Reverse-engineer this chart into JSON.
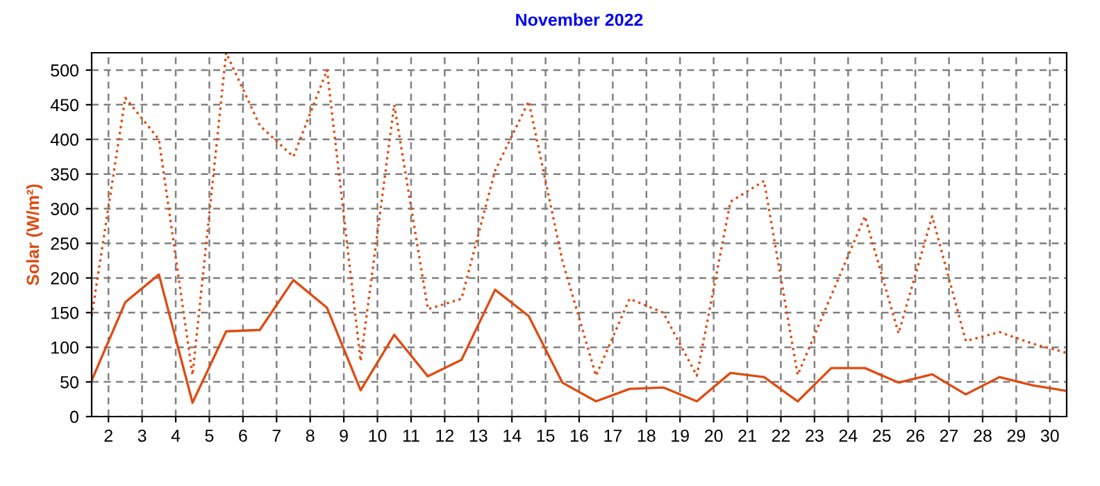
{
  "chart_data": {
    "type": "line",
    "title": "November 2022",
    "ylabel": "Solar (W/m²)",
    "x": [
      1.5,
      2.5,
      3.5,
      4.5,
      5.5,
      6.5,
      7.5,
      8.5,
      9.5,
      10.5,
      11.5,
      12.5,
      13.5,
      14.5,
      15.5,
      16.5,
      17.5,
      18.5,
      19.5,
      20.5,
      21.5,
      22.5,
      23.5,
      24.5,
      25.5,
      26.5,
      27.5,
      28.5,
      29.5,
      30.5
    ],
    "series": [
      {
        "color": "#e04a10",
        "line_style": "dotted",
        "values": [
          145,
          460,
          400,
          60,
          525,
          420,
          375,
          500,
          80,
          450,
          155,
          170,
          355,
          455,
          225,
          59,
          170,
          150,
          59,
          310,
          340,
          60,
          175,
          289,
          120,
          289,
          109,
          122,
          105,
          92
        ]
      },
      {
        "color": "#e04a10",
        "line_style": "solid",
        "values": [
          52,
          165,
          205,
          20,
          123,
          125,
          197,
          157,
          38,
          118,
          58,
          82,
          183,
          145,
          49,
          22,
          40,
          42,
          22,
          63,
          57,
          22,
          70,
          70,
          49,
          61,
          32,
          57,
          45,
          37
        ]
      }
    ],
    "xlim": [
      1.5,
      30.5
    ],
    "xticks": [
      2,
      3,
      4,
      5,
      6,
      7,
      8,
      9,
      10,
      11,
      12,
      13,
      14,
      15,
      16,
      17,
      18,
      19,
      20,
      21,
      22,
      23,
      24,
      25,
      26,
      27,
      28,
      29,
      30
    ],
    "ylim": [
      0,
      525
    ],
    "yticks": [
      0,
      50,
      100,
      150,
      200,
      250,
      300,
      350,
      400,
      450,
      500
    ],
    "grid": true,
    "legend": false
  }
}
